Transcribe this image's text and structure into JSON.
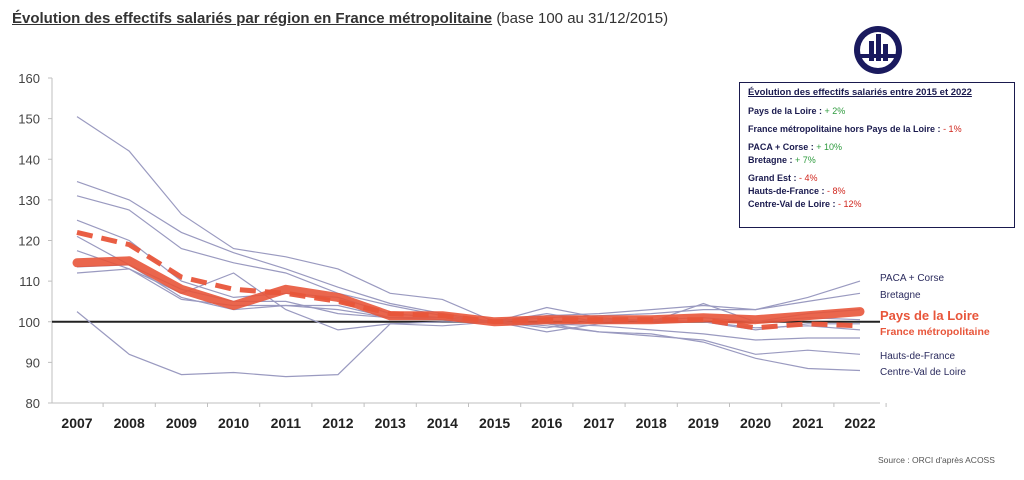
{
  "title": {
    "main": "Évolution des effectifs salariés par région en France métropolitaine",
    "sub": "(base 100 au 31/12/2015)"
  },
  "legend_box": {
    "title": "Évolution des effectifs salariés entre 2015 et 2022",
    "rows": [
      {
        "label": "Pays de la Loire : ",
        "value": "+ 2%",
        "sign": "pos"
      },
      {
        "label": "France métropolitaine hors Pays de la Loire : ",
        "value": "- 1%",
        "sign": "neg"
      },
      {
        "label": "PACA + Corse : ",
        "value": "+ 10%",
        "sign": "pos"
      },
      {
        "label": "Bretagne : ",
        "value": "+ 7%",
        "sign": "pos"
      },
      {
        "label": "Grand Est : ",
        "value": "- 4%",
        "sign": "neg"
      },
      {
        "label": "Hauts-de-France : ",
        "value": "- 8%",
        "sign": "neg"
      },
      {
        "label": "Centre-Val de Loire : ",
        "value": "- 12%",
        "sign": "neg"
      }
    ]
  },
  "source": "Source : ORCI d'après ACOSS",
  "colors": {
    "regions": "#9a9ac0",
    "highlight": "#e8553a",
    "baseline": "#222222",
    "label_navy": "#2b2b5e",
    "positive": "#2e9b3e",
    "negative": "#d0261d"
  },
  "chart_data": {
    "type": "line",
    "x": [
      "2007",
      "2008",
      "2009",
      "2010",
      "2011",
      "2012",
      "2013",
      "2014",
      "2015",
      "2016",
      "2017",
      "2018",
      "2019",
      "2020",
      "2021",
      "2022"
    ],
    "ylim": [
      80,
      160
    ],
    "yticks": [
      80,
      90,
      100,
      110,
      120,
      130,
      140,
      150,
      160
    ],
    "baseline": 100,
    "series": [
      {
        "name": "PACA + Corse",
        "style": "thin",
        "label_visible": true,
        "values": [
          113.5,
          114,
          106,
          103,
          104,
          104,
          101,
          100.5,
          100,
          101.5,
          102,
          103,
          104,
          103,
          106,
          110
        ]
      },
      {
        "name": "Bretagne",
        "style": "thin",
        "label_visible": true,
        "values": [
          125,
          120,
          110,
          106,
          107,
          106,
          102,
          101,
          100,
          101,
          101.5,
          102,
          103,
          103,
          105,
          107
        ]
      },
      {
        "name": "Grand Est",
        "style": "thin",
        "label_visible": false,
        "values": [
          117.5,
          113,
          105.5,
          104,
          104,
          103,
          101,
          101,
          100,
          99.5,
          99,
          98,
          97,
          95.5,
          96,
          96
        ]
      },
      {
        "name": "Hauts-de-France",
        "style": "thin",
        "label_visible": true,
        "values": [
          102.5,
          92,
          87,
          87.5,
          86.5,
          87,
          99.5,
          100,
          100,
          99.5,
          97.5,
          96.5,
          95.5,
          92,
          93,
          92
        ]
      },
      {
        "name": "Centre-Val de Loire",
        "style": "thin",
        "label_visible": true,
        "values": [
          150.5,
          142,
          126.5,
          118,
          116,
          113,
          107,
          105.5,
          100,
          99,
          97.5,
          97,
          95,
          91,
          88.5,
          88
        ]
      },
      {
        "name": "",
        "style": "thin",
        "label_visible": false,
        "values": [
          134.5,
          130,
          122,
          117,
          113,
          108.5,
          104.5,
          102,
          100,
          102,
          100,
          100.5,
          101,
          100,
          102,
          103
        ]
      },
      {
        "name": "",
        "style": "thin",
        "label_visible": false,
        "values": [
          131,
          127.5,
          118,
          114.5,
          112,
          107,
          104,
          101.5,
          100,
          98.5,
          100.5,
          100.5,
          100,
          98,
          99.5,
          99.5
        ]
      },
      {
        "name": "",
        "style": "thin",
        "label_visible": false,
        "values": [
          121,
          114,
          108,
          105,
          105,
          102,
          101,
          101,
          100,
          103.5,
          101,
          100,
          104.5,
          100,
          101,
          100.5
        ]
      },
      {
        "name": "",
        "style": "thin",
        "label_visible": false,
        "values": [
          112,
          113,
          107,
          112,
          103,
          98,
          99.5,
          99,
          100,
          97.5,
          99.5,
          100,
          100,
          98.5,
          99,
          98
        ]
      },
      {
        "name": "France métropolitaine",
        "style": "dashed-thick",
        "label_visible": true,
        "values": [
          122,
          119,
          111,
          108,
          107,
          105,
          102,
          101.5,
          100,
          100.5,
          100.5,
          100.5,
          100.5,
          98.5,
          99.5,
          99
        ]
      },
      {
        "name": "Pays de la Loire",
        "style": "solid-thick",
        "label_visible": true,
        "values": [
          114.5,
          115,
          108,
          104,
          108,
          106,
          101.5,
          101.5,
          100,
          100.5,
          100.5,
          100.5,
          101,
          100.5,
          101.5,
          102.5
        ]
      }
    ]
  }
}
